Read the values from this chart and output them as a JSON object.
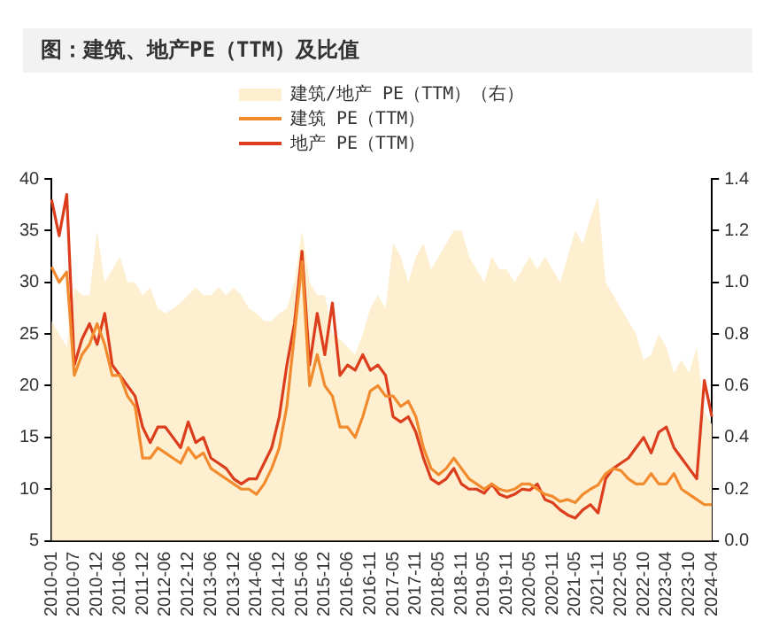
{
  "chart_data": {
    "type": "line",
    "title": "图：建筑、地产PE（TTM）及比值",
    "legend": "top",
    "grid": false,
    "marker": "none",
    "categories": [
      "2010-01",
      null,
      null,
      "2010-07",
      null,
      null,
      "2010-12",
      null,
      null,
      "2011-06",
      null,
      null,
      "2011-12",
      null,
      null,
      "2012-06",
      null,
      null,
      "2012-12",
      null,
      null,
      "2013-06",
      null,
      null,
      "2013-12",
      null,
      null,
      "2014-06",
      null,
      null,
      "2014-12",
      null,
      null,
      "2015-06",
      null,
      null,
      "2015-12",
      null,
      null,
      "2016-06",
      null,
      null,
      "2016-11",
      null,
      null,
      "2017-05",
      null,
      null,
      "2017-11",
      null,
      null,
      "2018-05",
      null,
      null,
      "2018-11",
      null,
      null,
      "2019-05",
      null,
      null,
      "2019-11",
      null,
      null,
      "2020-05",
      null,
      null,
      "2020-11",
      null,
      null,
      "2021-05",
      null,
      null,
      "2021-11",
      null,
      null,
      "2022-05",
      null,
      null,
      "2022-10",
      null,
      null,
      "2023-04",
      null,
      null,
      "2023-10",
      null,
      null,
      "2024-04"
    ],
    "ylim": [
      5,
      40
    ],
    "yticks": [
      5,
      10,
      15,
      20,
      25,
      30,
      35,
      40
    ],
    "y2lim": [
      0,
      1.4
    ],
    "y2ticks": [
      {
        "value": 0,
        "label": "0.0"
      },
      {
        "value": 0.2,
        "label": "0.2"
      },
      {
        "value": 0.4,
        "label": "0.4"
      },
      {
        "value": 0.6,
        "label": "0.6"
      },
      {
        "value": 0.8,
        "label": "0.8"
      },
      {
        "value": 1,
        "label": "1.0"
      },
      {
        "value": 1.2,
        "label": "1.2"
      },
      {
        "value": 1.4,
        "label": "1.4"
      }
    ],
    "series": [
      {
        "name": "建筑/地产 PE（TTM）（右）",
        "type": "area",
        "axis": "y2",
        "color": "#fdefcf",
        "values": [
          0.85,
          0.8,
          0.75,
          0.98,
          0.95,
          0.95,
          1.2,
          1.0,
          1.05,
          1.1,
          1.0,
          1.0,
          0.95,
          0.98,
          0.9,
          0.88,
          0.9,
          0.92,
          0.95,
          0.98,
          0.95,
          0.95,
          0.98,
          0.95,
          0.98,
          0.95,
          0.9,
          0.88,
          0.85,
          0.85,
          0.88,
          0.9,
          1.0,
          1.2,
          1.0,
          0.95,
          0.95,
          0.8,
          0.78,
          0.75,
          0.72,
          0.8,
          0.9,
          0.95,
          0.9,
          1.15,
          1.1,
          1.0,
          1.1,
          1.15,
          1.05,
          1.1,
          1.15,
          1.2,
          1.2,
          1.1,
          1.05,
          1.0,
          1.1,
          1.05,
          1.05,
          1.0,
          1.05,
          1.1,
          1.05,
          1.1,
          1.05,
          1.0,
          1.1,
          1.2,
          1.15,
          1.25,
          1.33,
          1.0,
          0.95,
          0.9,
          0.85,
          0.8,
          0.7,
          0.72,
          0.8,
          0.75,
          0.65,
          0.7,
          0.65,
          0.75,
          0.5,
          0.45
        ]
      },
      {
        "name": "建筑 PE（TTM）",
        "type": "line",
        "color": "#f28a2e",
        "values": [
          31.5,
          30,
          31,
          21,
          23,
          24,
          26,
          24,
          21,
          21,
          19,
          18,
          13,
          13,
          14,
          13.5,
          13,
          12.5,
          14,
          13,
          13.5,
          12,
          11.5,
          11,
          10.5,
          10,
          10,
          9.5,
          10.5,
          12,
          14,
          18,
          25,
          32,
          20,
          23,
          20,
          19,
          16,
          16,
          15,
          17,
          19.5,
          20,
          19,
          19,
          18,
          18.5,
          17,
          14,
          12,
          11.4,
          12,
          13,
          12,
          11,
          10.5,
          10,
          10.5,
          10,
          9.8,
          10,
          10.5,
          10.5,
          10,
          9.5,
          9.3,
          8.8,
          9,
          8.7,
          9.5,
          10,
          10.4,
          11.5,
          12,
          11.8,
          11,
          10.5,
          10.5,
          11.5,
          10.5,
          10.5,
          11.5,
          10,
          9.5,
          9,
          8.5,
          8.5
        ]
      },
      {
        "name": "地产 PE（TTM）",
        "type": "line",
        "color": "#dc3d1c",
        "values": [
          38,
          34.5,
          38.5,
          22,
          24.5,
          26,
          24,
          27,
          22,
          21,
          20,
          19,
          16,
          14.5,
          16,
          16,
          15,
          14,
          16.5,
          14.5,
          15,
          13,
          12.5,
          12,
          11,
          10.5,
          11,
          11,
          12.5,
          14,
          17,
          22,
          26,
          33,
          22,
          27,
          23,
          28,
          21,
          22,
          21.5,
          23,
          21.5,
          22,
          21,
          17,
          16.5,
          17,
          15.5,
          13,
          11,
          10.5,
          11,
          12,
          10.5,
          10,
          10,
          9.6,
          10.5,
          9.5,
          9.2,
          9.5,
          10,
          9.9,
          10.5,
          9,
          8.7,
          8,
          7.5,
          7.2,
          8,
          8.5,
          7.7,
          11,
          12,
          12.5,
          13,
          14,
          15,
          13.5,
          15.5,
          16,
          14,
          13,
          12,
          11,
          20.5,
          17
        ]
      }
    ]
  }
}
